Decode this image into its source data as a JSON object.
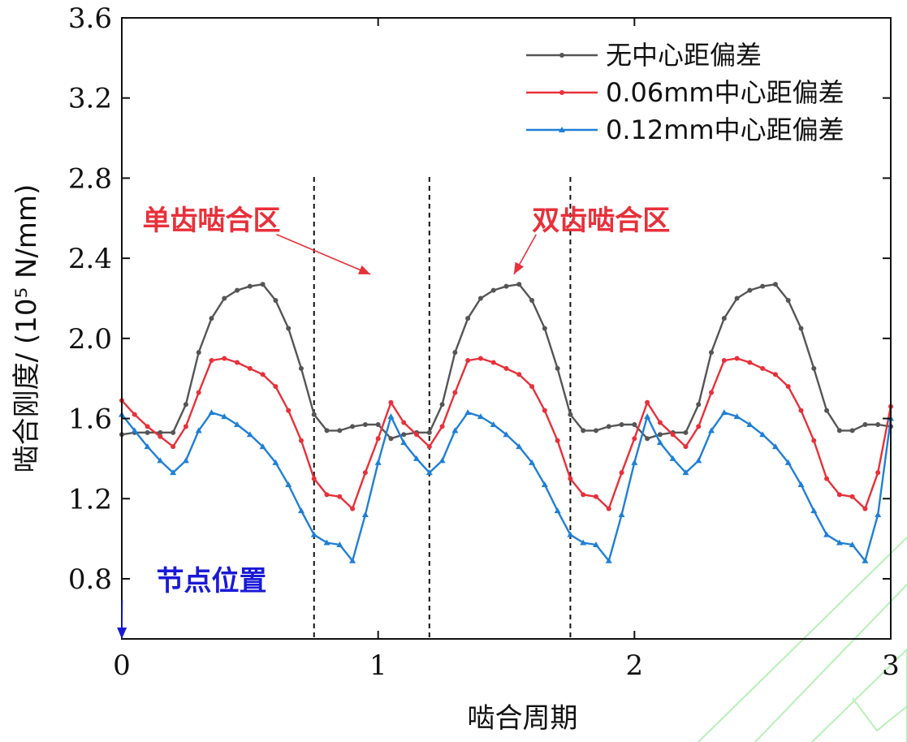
{
  "chart_data": {
    "type": "line",
    "title": "",
    "xlabel": "啮合周期",
    "ylabel": "啮合刚度/ (10⁵ N/mm)",
    "xlim": [
      0,
      3
    ],
    "ylim": [
      0.5,
      3.6
    ],
    "xticks": [
      "0",
      "1",
      "2",
      "3"
    ],
    "yticks": [
      "0.8",
      "1.2",
      "1.6",
      "2.0",
      "2.4",
      "2.8",
      "3.2",
      "3.6"
    ],
    "legend_position": "top-right",
    "x": [
      0,
      0.05,
      0.1,
      0.15,
      0.2,
      0.25,
      0.3,
      0.35,
      0.4,
      0.45,
      0.5,
      0.55,
      0.6,
      0.65,
      0.7,
      0.75,
      0.8,
      0.85,
      0.9,
      0.95,
      1.0,
      1.05,
      1.1,
      1.15,
      1.2,
      1.25,
      1.3,
      1.35,
      1.4,
      1.45,
      1.5,
      1.55,
      1.6,
      1.65,
      1.7,
      1.75,
      1.8,
      1.85,
      1.9,
      1.95,
      2.0,
      2.05,
      2.1,
      2.15,
      2.2,
      2.25,
      2.3,
      2.35,
      2.4,
      2.45,
      2.5,
      2.55,
      2.6,
      2.65,
      2.7,
      2.75,
      2.8,
      2.85,
      2.9,
      2.95,
      3.0
    ],
    "series": [
      {
        "name": "无中心距偏差",
        "color": "#555555",
        "values": [
          1.52,
          1.53,
          1.53,
          1.53,
          1.53,
          1.67,
          1.93,
          2.1,
          2.2,
          2.24,
          2.26,
          2.27,
          2.19,
          2.05,
          1.85,
          1.62,
          1.54,
          1.54,
          1.56,
          1.57,
          1.57,
          1.5,
          1.52,
          1.53,
          1.53,
          1.67,
          1.93,
          2.1,
          2.2,
          2.24,
          2.26,
          2.27,
          2.19,
          2.05,
          1.85,
          1.62,
          1.54,
          1.54,
          1.56,
          1.57,
          1.57,
          1.5,
          1.52,
          1.53,
          1.53,
          1.67,
          1.93,
          2.1,
          2.2,
          2.24,
          2.26,
          2.27,
          2.19,
          2.05,
          1.85,
          1.64,
          1.54,
          1.54,
          1.57,
          1.57,
          1.56
        ]
      },
      {
        "name": "0.06mm中心距偏差",
        "color": "#e8303a",
        "values": [
          1.69,
          1.62,
          1.56,
          1.51,
          1.46,
          1.56,
          1.73,
          1.89,
          1.9,
          1.88,
          1.85,
          1.82,
          1.76,
          1.64,
          1.49,
          1.3,
          1.22,
          1.21,
          1.15,
          1.33,
          1.5,
          1.68,
          1.58,
          1.52,
          1.46,
          1.56,
          1.73,
          1.89,
          1.9,
          1.88,
          1.85,
          1.82,
          1.76,
          1.64,
          1.49,
          1.3,
          1.22,
          1.21,
          1.15,
          1.33,
          1.5,
          1.68,
          1.58,
          1.52,
          1.46,
          1.56,
          1.73,
          1.89,
          1.9,
          1.88,
          1.85,
          1.82,
          1.76,
          1.64,
          1.49,
          1.3,
          1.22,
          1.21,
          1.15,
          1.33,
          1.66
        ]
      },
      {
        "name": "0.12mm中心距偏差",
        "color": "#1f7fd6",
        "values": [
          1.62,
          1.54,
          1.46,
          1.39,
          1.33,
          1.39,
          1.54,
          1.63,
          1.61,
          1.57,
          1.52,
          1.46,
          1.38,
          1.27,
          1.14,
          1.02,
          0.98,
          0.97,
          0.89,
          1.12,
          1.38,
          1.61,
          1.48,
          1.4,
          1.33,
          1.39,
          1.54,
          1.63,
          1.61,
          1.57,
          1.52,
          1.46,
          1.38,
          1.27,
          1.14,
          1.02,
          0.98,
          0.97,
          0.89,
          1.12,
          1.38,
          1.61,
          1.48,
          1.4,
          1.33,
          1.39,
          1.54,
          1.63,
          1.61,
          1.57,
          1.52,
          1.46,
          1.38,
          1.27,
          1.14,
          1.02,
          0.98,
          0.97,
          0.89,
          1.12,
          1.6
        ]
      }
    ],
    "vlines": [
      0.75,
      1.2,
      1.75
    ],
    "annotations": [
      {
        "text": "单齿啮合区",
        "color": "#e8303a",
        "x": 0.35,
        "y": 2.6,
        "arrow_to": [
          0.97,
          2.32
        ]
      },
      {
        "text": "双齿啮合区",
        "color": "#e8303a",
        "x": 1.87,
        "y": 2.6,
        "arrow_to": [
          1.53,
          2.32
        ]
      },
      {
        "text": "节点位置",
        "color": "#1a1ad6",
        "x": 0.35,
        "y": 0.8,
        "arrow_to": [
          0.0,
          0.5
        ]
      }
    ]
  }
}
